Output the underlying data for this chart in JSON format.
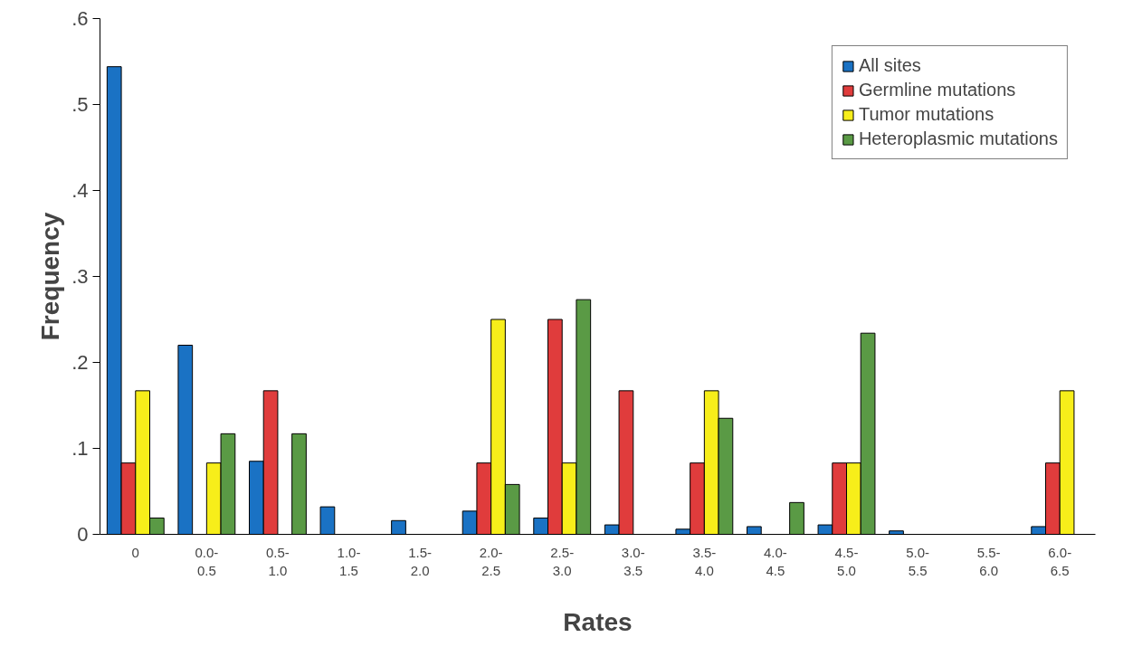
{
  "chart_data": {
    "type": "bar",
    "xlabel": "Rates",
    "ylabel": "Frequency",
    "categories": [
      "0",
      "0.0-\n0.5",
      "0.5-\n1.0",
      "1.0-\n1.5",
      "1.5-\n2.0",
      "2.0-\n2.5",
      "2.5-\n3.0",
      "3.0-\n3.5",
      "3.5-\n4.0",
      "4.0-\n4.5",
      "4.5-\n5.0",
      "5.0-\n5.5",
      "5.5-\n6.0",
      "6.0-\n6.5"
    ],
    "series": [
      {
        "name": "All sites",
        "color": "#1a72c4",
        "values": [
          0.544,
          0.22,
          0.085,
          0.032,
          0.016,
          0.027,
          0.019,
          0.011,
          0.006,
          0.009,
          0.011,
          0.004,
          0,
          0.009
        ]
      },
      {
        "name": "Germline mutations",
        "color": "#e03c3c",
        "values": [
          0.083,
          0,
          0.167,
          0,
          0,
          0.083,
          0.25,
          0.167,
          0.083,
          0,
          0.083,
          0,
          0,
          0.083
        ]
      },
      {
        "name": "Tumor mutations",
        "color": "#f7ee1a",
        "values": [
          0.167,
          0.083,
          0,
          0,
          0,
          0.25,
          0.083,
          0,
          0.167,
          0,
          0.083,
          0,
          0,
          0.167
        ]
      },
      {
        "name": "Heteroplasmic mutations",
        "color": "#5a9a45",
        "values": [
          0.019,
          0.117,
          0.117,
          0,
          0,
          0.058,
          0.273,
          0,
          0.135,
          0.037,
          0.234,
          0,
          0,
          0
        ]
      }
    ],
    "ylim": [
      0,
      0.6
    ],
    "yticks": [
      0,
      {
        "value": 0.1,
        "label": ".1"
      },
      {
        "value": 0.2,
        "label": ".2"
      },
      {
        "value": 0.3,
        "label": ".3"
      },
      {
        "value": 0.4,
        "label": ".4"
      },
      {
        "value": 0.5,
        "label": ".5"
      },
      {
        "value": 0.6,
        "label": ".6"
      }
    ],
    "grid": false,
    "legend": "top right"
  }
}
